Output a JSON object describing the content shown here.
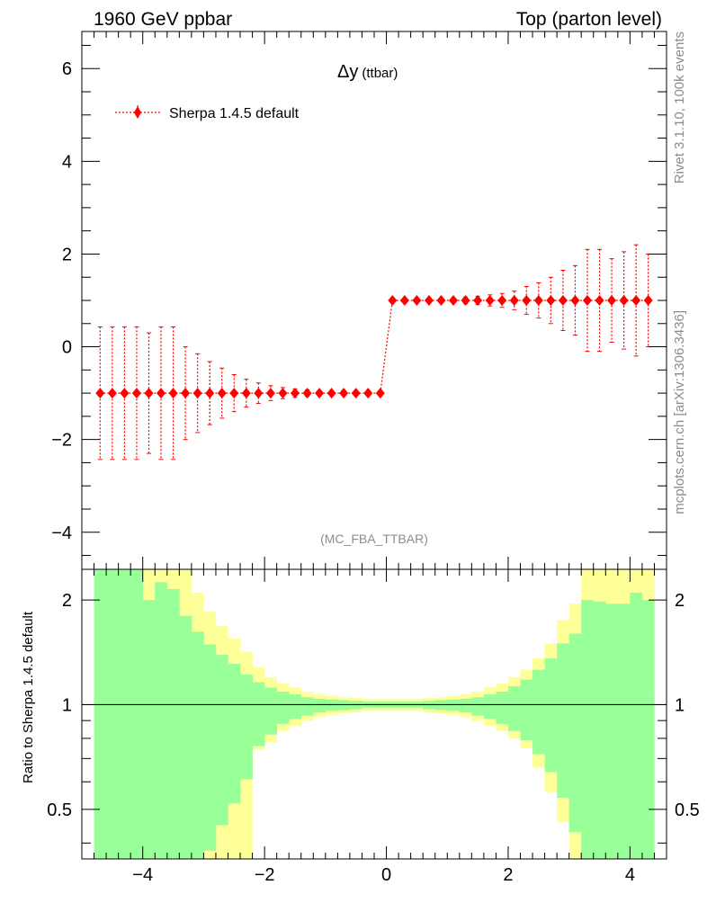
{
  "header": {
    "left": "1960 GeV ppbar",
    "right": "Top (parton level)"
  },
  "side_text": {
    "rivet": "Rivet 3.1.10,  100k events",
    "mcplots": "mcplots.cern.ch [arXiv:1306.3436]"
  },
  "colors": {
    "mc_series": "#ff0000",
    "band_inner": "#99ff99",
    "band_outer": "#ffff99"
  },
  "chart_data": [
    {
      "type": "scatter",
      "panel": "main",
      "title_main": "Δy",
      "title_sub": "(ttbar)",
      "watermark": "(MC_FBA_TTBAR)",
      "legend": {
        "label": "Sherpa 1.4.5 default",
        "position": "top-left"
      },
      "xlim": [
        -5.0,
        4.6
      ],
      "ylim": [
        -4.8,
        6.8
      ],
      "y_ticks": [
        -4,
        -2,
        0,
        2,
        4,
        6
      ],
      "y_tick_labels": [
        "−4",
        "−2",
        "0",
        "2",
        "4",
        "6"
      ],
      "series": [
        {
          "name": "Sherpa 1.4.5 default",
          "x": [
            -4.7,
            -4.5,
            -4.3,
            -4.1,
            -3.9,
            -3.7,
            -3.5,
            -3.3,
            -3.1,
            -2.9,
            -2.7,
            -2.5,
            -2.3,
            -2.1,
            -1.9,
            -1.7,
            -1.5,
            -1.3,
            -1.1,
            -0.9,
            -0.7,
            -0.5,
            -0.3,
            -0.1,
            0.1,
            0.3,
            0.5,
            0.7,
            0.9,
            1.1,
            1.3,
            1.5,
            1.7,
            1.9,
            2.1,
            2.3,
            2.5,
            2.7,
            2.9,
            3.1,
            3.3,
            3.5,
            3.7,
            3.9,
            4.1,
            4.3
          ],
          "y": [
            -1,
            -1,
            -1,
            -1,
            -1,
            -1,
            -1,
            -1,
            -1,
            -1,
            -1,
            -1,
            -1,
            -1,
            -1,
            -1,
            -1,
            -1,
            -1,
            -1,
            -1,
            -1,
            -1,
            -1,
            1,
            1,
            1,
            1,
            1,
            1,
            1,
            1,
            1,
            1,
            1,
            1,
            1,
            1,
            1,
            1,
            1,
            1,
            1,
            1,
            1,
            1
          ],
          "yerr": [
            1.43,
            1.43,
            1.43,
            1.43,
            1.3,
            1.43,
            1.43,
            1.0,
            0.85,
            0.68,
            0.54,
            0.4,
            0.3,
            0.22,
            0.16,
            0.12,
            0.09,
            0.07,
            0.05,
            0.04,
            0.03,
            0.025,
            0.02,
            0.02,
            0.02,
            0.02,
            0.025,
            0.03,
            0.04,
            0.05,
            0.07,
            0.09,
            0.12,
            0.15,
            0.2,
            0.3,
            0.38,
            0.5,
            0.65,
            0.75,
            1.1,
            1.1,
            0.9,
            1.05,
            1.2,
            1.0
          ]
        }
      ]
    },
    {
      "type": "area",
      "panel": "ratio",
      "ylabel": "Ratio to Sherpa 1.4.5 default",
      "xlim": [
        -5.0,
        4.6
      ],
      "ylim": [
        0.36,
        2.45
      ],
      "log_y": true,
      "x_ticks": [
        -4,
        -2,
        0,
        2,
        4
      ],
      "x_tick_labels": [
        "−4",
        "−2",
        "0",
        "2",
        "4"
      ],
      "y_ticks": [
        0.5,
        1,
        2
      ],
      "y_tick_labels": [
        "0.5",
        "1",
        "2"
      ],
      "bin_edges": [
        -4.8,
        -4.6,
        -4.4,
        -4.2,
        -4.0,
        -3.8,
        -3.6,
        -3.4,
        -3.2,
        -3.0,
        -2.8,
        -2.6,
        -2.4,
        -2.2,
        -2.0,
        -1.8,
        -1.6,
        -1.4,
        -1.2,
        -1.0,
        -0.8,
        -0.6,
        -0.4,
        -0.2,
        0.0,
        0.2,
        0.4,
        0.6,
        0.8,
        1.0,
        1.2,
        1.4,
        1.6,
        1.8,
        2.0,
        2.2,
        2.4,
        2.6,
        2.8,
        3.0,
        3.2,
        3.4,
        3.6,
        3.8,
        4.0,
        4.2,
        4.4
      ],
      "series": [
        {
          "name": "inner band",
          "upper": [
            2.6,
            2.6,
            2.6,
            2.6,
            2.0,
            2.25,
            2.15,
            1.8,
            1.62,
            1.49,
            1.39,
            1.31,
            1.22,
            1.16,
            1.12,
            1.09,
            1.07,
            1.05,
            1.04,
            1.035,
            1.03,
            1.025,
            1.02,
            1.02,
            1.02,
            1.02,
            1.02,
            1.025,
            1.03,
            1.035,
            1.04,
            1.05,
            1.07,
            1.09,
            1.13,
            1.18,
            1.26,
            1.36,
            1.5,
            1.6,
            2.0,
            1.98,
            1.95,
            1.95,
            2.1,
            2.0
          ],
          "lower": [
            0.3,
            0.3,
            0.3,
            0.3,
            0.3,
            0.3,
            0.3,
            0.3,
            0.3,
            0.38,
            0.45,
            0.52,
            0.61,
            0.76,
            0.82,
            0.88,
            0.91,
            0.93,
            0.95,
            0.96,
            0.965,
            0.97,
            0.98,
            0.98,
            0.98,
            0.98,
            0.98,
            0.97,
            0.965,
            0.96,
            0.95,
            0.93,
            0.91,
            0.88,
            0.84,
            0.79,
            0.72,
            0.64,
            0.54,
            0.43,
            0.3,
            0.3,
            0.3,
            0.3,
            0.3,
            0.3
          ]
        },
        {
          "name": "outer band",
          "upper": [
            2.6,
            2.6,
            2.6,
            2.6,
            2.6,
            2.6,
            2.6,
            2.6,
            2.1,
            1.85,
            1.68,
            1.55,
            1.42,
            1.28,
            1.2,
            1.15,
            1.12,
            1.09,
            1.07,
            1.06,
            1.05,
            1.045,
            1.04,
            1.04,
            1.04,
            1.04,
            1.04,
            1.045,
            1.05,
            1.06,
            1.07,
            1.09,
            1.12,
            1.15,
            1.2,
            1.26,
            1.36,
            1.5,
            1.75,
            1.95,
            2.6,
            2.6,
            2.6,
            2.6,
            2.6,
            2.6
          ],
          "lower": [
            0.3,
            0.3,
            0.3,
            0.3,
            0.3,
            0.3,
            0.3,
            0.3,
            0.3,
            0.3,
            0.3,
            0.3,
            0.3,
            0.74,
            0.78,
            0.84,
            0.87,
            0.9,
            0.92,
            0.935,
            0.945,
            0.95,
            0.96,
            0.96,
            0.96,
            0.96,
            0.96,
            0.95,
            0.945,
            0.935,
            0.92,
            0.9,
            0.87,
            0.84,
            0.8,
            0.75,
            0.66,
            0.56,
            0.46,
            0.3,
            0.3,
            0.3,
            0.3,
            0.3,
            0.3,
            0.3
          ]
        }
      ],
      "reference_line": 1
    }
  ]
}
